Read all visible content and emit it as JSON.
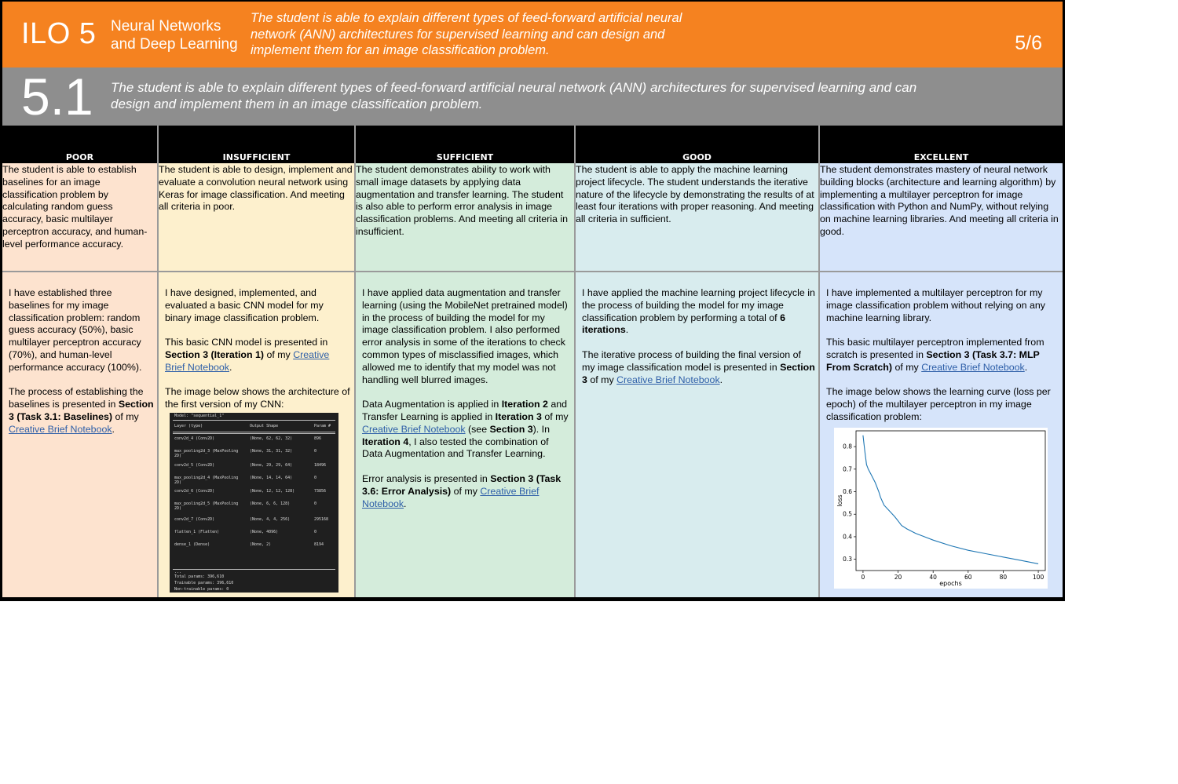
{
  "header": {
    "ilo_label": "ILO 5",
    "topic_line1": "Neural Networks",
    "topic_line2": "and Deep Learning",
    "description": "The student is able to explain different types of feed-forward artificial neural network (ANN) architectures for supervised learning and can design and implement them for an image classification problem.",
    "page": "5/6",
    "color": "#f58220"
  },
  "subheader": {
    "number": "5.1",
    "description": "The student is able to explain different types of feed-forward artificial neural network (ANN) architectures for supervised learning and can design and implement them in an image classification problem.",
    "color": "#8e8e8e"
  },
  "columns": [
    {
      "label": "POOR",
      "color": "#fde3cf",
      "criteria": "The student is able to establish baselines for an image classification problem by calculating random guess accuracy, basic multilayer perceptron accuracy, and human-level performance accuracy."
    },
    {
      "label": "INSUFFICIENT",
      "color": "#fdf0cd",
      "criteria": "The student is able to design, implement and evaluate a convolution neural network using Keras for image classification. And meeting all criteria in poor."
    },
    {
      "label": "SUFFICIENT",
      "color": "#d4ecdb",
      "criteria": "The student demonstrates ability to work with small image datasets by applying data augmentation and transfer learning. The student is also able to perform error analysis in image classification problems. And meeting all criteria in insufficient."
    },
    {
      "label": "GOOD",
      "color": "#d8ecee",
      "criteria": "The student is able to apply the machine learning project lifecycle. The student understands the iterative nature of the lifecycle by demonstrating the results of at least four iterations with proper reasoning. And meeting all criteria in sufficient."
    },
    {
      "label": "EXCELLENT",
      "color": "#d6e4fa",
      "criteria": "The student demonstrates mastery of neural network building blocks (architecture and learning algorithm) by implementing a multilayer perceptron for image classification with Python and NumPy, without relying on machine learning libraries. And meeting all criteria in good."
    }
  ],
  "evidence": {
    "poor": {
      "p1": "I have established three baselines for my image classification problem: random guess accuracy (50%), basic multilayer perceptron accuracy (70%), and human-level performance accuracy (100%).",
      "p2_a": "The process of establishing the baselines is presented in ",
      "p2_b": "Section 3 (Task 3.1: Baselines)",
      "p2_c": " of my ",
      "link": "Creative Brief Notebook",
      "p2_d": "."
    },
    "insufficient": {
      "p1": "I have designed, implemented, and evaluated a basic CNN model for my binary image classification problem.",
      "p2_a": "This basic CNN model is presented in ",
      "p2_b": "Section 3 (Iteration 1)",
      "p2_c": " of my ",
      "link": "Creative Brief Notebook",
      "p2_d": ".",
      "p3": "The image below shows the architecture of the first version of my CNN:"
    },
    "sufficient": {
      "p1": "I have applied data augmentation and transfer learning (using the MobileNet pretrained model) in the process of building the model for my image classification problem. I also performed error analysis in some of the iterations to check common types of misclassified images, which allowed me to identify that my model was not handling well blurred images.",
      "p2_a": "Data Augmentation is applied in ",
      "p2_b": "Iteration 2",
      "p2_c": " and Transfer Learning is applied in ",
      "p2_d": "Iteration 3",
      "p2_e": " of my ",
      "link": "Creative Brief Notebook",
      "p2_f": " (see ",
      "p2_g": "Section 3",
      "p2_h": "). In ",
      "p2_i": "Iteration 4",
      "p2_j": ", I also tested the combination of Data Augmentation and Transfer Learning.",
      "p3_a": "Error analysis is presented in ",
      "p3_b": "Section 3 (Task 3.6: Error Analysis)",
      "p3_c": " of my ",
      "link2": "Creative Brief Notebook",
      "p3_d": "."
    },
    "good": {
      "p1_a": "I have applied the machine learning project lifecycle in the process of building the model for my image classification problem by performing a total of ",
      "p1_b": "6 iterations",
      "p1_c": ".",
      "p2_a": "The iterative process of building the final version of my image classification model is presented in ",
      "p2_b": "Section 3",
      "p2_c": " of my ",
      "link": "Creative Brief Notebook",
      "p2_d": "."
    },
    "excellent": {
      "p1": "I have implemented a multilayer perceptron for my image classification problem without relying on any machine learning library.",
      "p2_a": "This basic multilayer perceptron implemented from scratch is presented in ",
      "p2_b": "Section 3 (Task 3.7: MLP From Scratch)",
      "p2_c": " of my ",
      "link": "Creative Brief Notebook",
      "p2_d": ".",
      "p3": "The image below shows the learning curve (loss per epoch) of the multilayer perceptron in my image classification problem:"
    }
  },
  "cnn_summary": {
    "title": "Model: \"sequential_1\"",
    "headers": [
      "Layer (type)",
      "Output Shape",
      "Param #"
    ],
    "rows": [
      [
        "conv2d_4 (Conv2D)",
        "(None, 62, 62, 32)",
        "896"
      ],
      [
        "max_pooling2d_3 (MaxPooling",
        "(None, 31, 31, 32)",
        "0"
      ],
      [
        "conv2d_5 (Conv2D)",
        "(None, 29, 29, 64)",
        "18496"
      ],
      [
        "max_pooling2d_4 (MaxPooling",
        "(None, 14, 14, 64)",
        "0"
      ],
      [
        "conv2d_6 (Conv2D)",
        "(None, 12, 12, 128)",
        "73856"
      ],
      [
        "max_pooling2d_5 (MaxPooling",
        "(None, 6, 6, 128)",
        "0"
      ],
      [
        "conv2d_7 (Conv2D)",
        "(None, 4, 4, 256)",
        "295168"
      ],
      [
        "flatten_1 (Flatten)",
        "(None, 4096)",
        "0"
      ],
      [
        "dense_1 (Dense)",
        "(None, 2)",
        "8194"
      ]
    ],
    "row_suffix": "2D)",
    "ellipsis": "...",
    "total": "Total params: 396,610",
    "trainable": "Trainable params: 396,610",
    "non_trainable": "Non-trainable params: 0"
  },
  "chart_data": {
    "type": "line",
    "xlabel": "epochs",
    "ylabel": "loss",
    "xlim": [
      -4,
      104
    ],
    "ylim": [
      0.25,
      0.87
    ],
    "xticks": [
      0,
      20,
      40,
      60,
      80,
      100
    ],
    "yticks": [
      0.3,
      0.4,
      0.5,
      0.6,
      0.7,
      0.8
    ],
    "series_color": "#1f77b4",
    "series": [
      {
        "x": [
          0,
          1,
          2,
          3,
          5,
          7,
          9,
          10,
          12,
          15,
          18,
          20,
          22,
          25,
          30,
          35,
          40,
          50,
          60,
          70,
          80,
          90,
          100
        ],
        "values": [
          0.85,
          0.78,
          0.72,
          0.7,
          0.67,
          0.64,
          0.6,
          0.575,
          0.54,
          0.515,
          0.49,
          0.47,
          0.45,
          0.435,
          0.415,
          0.4,
          0.385,
          0.36,
          0.34,
          0.325,
          0.31,
          0.295,
          0.28
        ]
      }
    ]
  }
}
